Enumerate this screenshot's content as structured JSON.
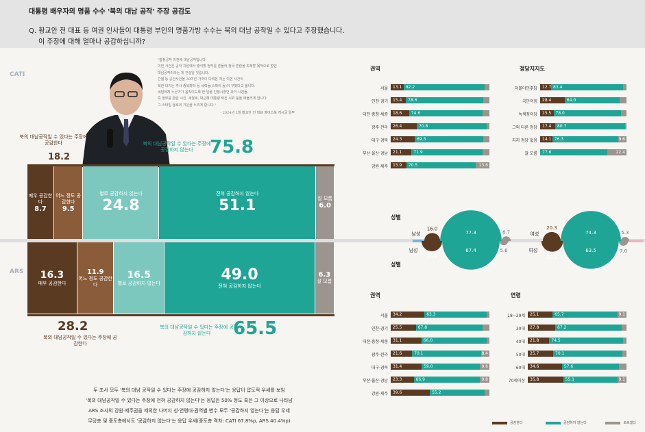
{
  "header": {
    "title": "대통령 배우자의 명품 수수 '북의 대남 공작' 주장 공감도",
    "question1": "Q. 황교안 전 대표 등 여권 인사들이 대통령 부인의 명품가방 수수는 북의 대남 공작일 수 있다고 주장했습니다.",
    "question2": "이 주장에 대해 얼마나 공감하십니까?"
  },
  "side_labels": {
    "cati": "CATI",
    "ars": "ARS"
  },
  "quote": {
    "lines": [
      "\"함정공작 이전에 대남공작입니다.",
      "이번 사건은 공작 차원에서 출석할 정부를 혼들어 정국 혼란을 초래할 목적으로 벌인",
      "대남공작이라는 게 진실일 것입니다.",
      "간첩 등 공안사건을 30여년 가까이 다뤄온 저는 이번 사건이",
      "북한 내지는 주사 종북좌파 등 세력들(스파이 등)이 꾸몄다고 봅니다.",
      "세밀하게 누군가가 움직이도록 한 일을 진행시켰던 과거 사건들,",
      "즉 정부를 혼란 시킨, 세월호, 박근혜 대통령 퇴진 시위 등을 떠올리게 합니다.",
      "그 스타일 용로의 기운을 느끼게 합니다.\""
    ],
    "source": "- 2024년 2월 황교안 전 대표 페이스북 게시글 일부"
  },
  "colors": {
    "strong_agree": "#5b3a22",
    "agree": "#8a5c3a",
    "disagree": "#7cc8bf",
    "strong_disagree": "#1fa596",
    "dont_know": "#9b948f"
  },
  "chart_data": [
    {
      "type": "bar",
      "title": "CATI",
      "categories": [
        "매우 공감한다",
        "어느 정도 공감한다",
        "별로 공감하지 않는다",
        "전혀 공감하지 않는다",
        "잘 모름"
      ],
      "values": [
        8.7,
        9.5,
        24.8,
        51.1,
        6.0
      ],
      "summary": {
        "agree_label": "북의 대남공작일 수 있다는 주장에 공감한다",
        "agree": 18.2,
        "disagree_label": "북의 대남공작일 수 있다는 주장에 공감하지 않는다",
        "disagree": 75.8
      }
    },
    {
      "type": "bar",
      "title": "ARS",
      "categories": [
        "매우 공감한다",
        "어느 정도 공감한다",
        "별로 공감하지 않는다",
        "전혀 공감하지 않는다",
        "잘 모름"
      ],
      "values": [
        16.3,
        11.9,
        16.5,
        49.0,
        6.3
      ],
      "summary": {
        "agree_label": "북의 대남공작일 수 있다는 주장에 공감한다",
        "agree": 28.2,
        "disagree_label": "북의 대남공작일 수 있다는 주장에 공감하지 않는다",
        "disagree": 65.5
      }
    },
    {
      "type": "bar",
      "title": "권역",
      "categories": [
        "서울",
        "인천·경기",
        "대전·충청·세종",
        "광주·전라",
        "대구·경북",
        "부산·울산·경남",
        "강원·제주"
      ],
      "series": [
        {
          "name": "공감한다",
          "values": [
            13.1,
            15.4,
            18.6,
            26.4,
            24.3,
            21.1,
            15.9
          ]
        },
        {
          "name": "공감하지 않는다",
          "values": [
            82.2,
            78.6,
            74.6,
            70.8,
            69.3,
            71.9,
            70.5
          ]
        },
        {
          "name": "모르겠다",
          "values": [
            4.7,
            6.0,
            6.7,
            2.8,
            6.4,
            7.0,
            13.6
          ]
        }
      ]
    },
    {
      "type": "bar",
      "title": "정당지지도",
      "categories": [
        "더불어민주당",
        "국민의힘",
        "녹색정의당",
        "그외 다른 정당",
        "지지 정당 없음",
        "잘 모름"
      ],
      "series": [
        {
          "name": "공감한다",
          "values": [
            12.7,
            28.4,
            15.5,
            17.4,
            14.1,
            0
          ]
        },
        {
          "name": "공감하지 않는다",
          "values": [
            83.4,
            64.0,
            78.0,
            80.7,
            76.3,
            77.6
          ]
        },
        {
          "name": "모르겠다",
          "values": [
            3.9,
            7.6,
            6.5,
            1.9,
            9.6,
            22.4
          ]
        }
      ]
    },
    {
      "type": "pie",
      "title": "성별",
      "groups": [
        {
          "name": "남성",
          "survey": "CATI",
          "values": {
            "agree": 16.0,
            "disagree": 77.3,
            "dk": 6.7
          }
        },
        {
          "name": "여성",
          "survey": "CATI",
          "values": {
            "agree": 20.3,
            "disagree": 74.3,
            "dk": 5.3
          }
        },
        {
          "name": "남성",
          "survey": "ARS",
          "values": {
            "agree": 26.9,
            "disagree": 67.4,
            "dk": 5.6
          }
        },
        {
          "name": "여성",
          "survey": "ARS",
          "values": {
            "agree": 29.5,
            "disagree": 63.5,
            "dk": 7.0
          }
        }
      ]
    },
    {
      "type": "bar",
      "title": "권역",
      "categories": [
        "서울",
        "인천·경기",
        "대전·충청·세종",
        "광주·전라",
        "대구·경북",
        "부산·울산·경남",
        "강원·제주"
      ],
      "series": [
        {
          "name": "공감한다",
          "values": [
            34.2,
            25.5,
            31.1,
            21.6,
            31.4,
            23.3,
            39.6
          ]
        },
        {
          "name": "공감하지 않는다",
          "values": [
            63.3,
            67.8,
            66.0,
            70.1,
            59.0,
            66.9,
            55.2
          ]
        },
        {
          "name": "모르겠다",
          "values": [
            2.5,
            6.7,
            2.9,
            8.4,
            9.6,
            9.8,
            5.1
          ]
        }
      ]
    },
    {
      "type": "bar",
      "title": "연령",
      "categories": [
        "18~29세",
        "30대",
        "40대",
        "50대",
        "60대",
        "70세이상"
      ],
      "series": [
        {
          "name": "공감한다",
          "values": [
            25.1,
            27.8,
            21.8,
            25.7,
            34.6,
            35.8
          ]
        },
        {
          "name": "공감하지 않는다",
          "values": [
            65.7,
            67.2,
            74.5,
            70.1,
            57.6,
            55.1
          ]
        },
        {
          "name": "모르겠다",
          "values": [
            9.1,
            5.0,
            3.7,
            4.2,
            7.7,
            9.1
          ]
        }
      ]
    }
  ],
  "labels": {
    "sex_title": "성별",
    "legend": [
      "공감한다",
      "공감하지 않는다",
      "모르겠다"
    ]
  },
  "note": {
    "lines": [
      "두 조사 모두 '북의 대남 공작일 수 있다는 주장에 공감하지 않는다'는 응답이 압도적 우세를 보임",
      "'북의 대남공작일 수 있다는 주장에 전혀 공감하지 않는다'는 응답은 50% 정도 혹은 그 이상으로 나타남",
      "ARS 조사의 강원·제주권을 제외한 나머지 성·연령대·권역별 변수 모두 '공감하지 않는다'는 응답 우세",
      "무당층 및 중도층에서도 '공감하지 않는다'는 응답 우세(중도층 격차: CATI 67.8%p, ARS 40.4%p)"
    ]
  }
}
